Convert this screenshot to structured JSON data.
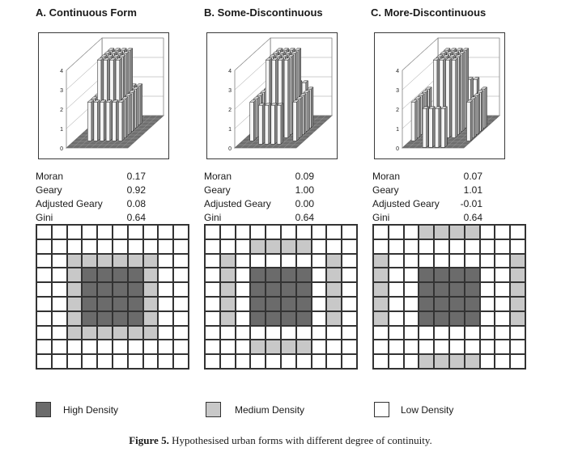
{
  "colors": {
    "high": "#6b6b6b",
    "medium": "#c8c8c8",
    "low": "#ffffff"
  },
  "panels": [
    {
      "title": "A. Continuous Form",
      "stats": [
        {
          "name": "Moran",
          "value": "0.17"
        },
        {
          "name": "Geary",
          "value": "0.92"
        },
        {
          "name": "Adjusted Geary",
          "value": "0.08"
        },
        {
          "name": "Gini",
          "value": "0.64"
        }
      ],
      "grid": [
        "LLLLLLLLLL",
        "LLLLLLLLLL",
        "LLMMMMMMLL",
        "LLMHHHHMLL",
        "LLMHHHHMLL",
        "LLMHHHHMLL",
        "LLMHHHHMLL",
        "LLMMMMMMLL",
        "LLLLLLLLLL",
        "LLLLLLLLLL"
      ]
    },
    {
      "title": "B. Some-Discontinuous",
      "stats": [
        {
          "name": "Moran",
          "value": "0.09"
        },
        {
          "name": "Geary",
          "value": "1.00"
        },
        {
          "name": "Adjusted Geary",
          "value": "0.00"
        },
        {
          "name": "Gini",
          "value": "0.64"
        }
      ],
      "grid": [
        "LLLLLLLLLL",
        "LLLMMMMLLL",
        "LMLLLLLLML",
        "LMLHHHHLML",
        "LMLHHHHLML",
        "LMLHHHHLML",
        "LMLHHHHLML",
        "LLLLLLLLLL",
        "LLLMMMMLLL",
        "LLLLLLLLLL"
      ]
    },
    {
      "title": "C. More-Discontinuous",
      "stats": [
        {
          "name": "Moran",
          "value": "0.07"
        },
        {
          "name": "Geary",
          "value": "1.01"
        },
        {
          "name": "Adjusted Geary",
          "value": "-0.01"
        },
        {
          "name": "Gini",
          "value": "0.64"
        }
      ],
      "grid": [
        "LLLMMMMLLL",
        "LLLLLLLLLL",
        "MLLLLLLLLM",
        "MLLHHHHLLM",
        "MLLHHHHLLM",
        "MLLHHHHLLM",
        "MLLHHHHLLM",
        "LLLLLLLLLL",
        "LLLLLLLLLL",
        "LLLMMMMLLL"
      ]
    }
  ],
  "chart_data": [
    {
      "type": "bar3d",
      "yticks": [
        "0",
        "1",
        "2",
        "3",
        "4"
      ],
      "levels": {
        "H": 4,
        "M": 2,
        "L": 0
      },
      "grid_ref": "panels.0.grid"
    },
    {
      "type": "bar3d",
      "yticks": [
        "0",
        "1",
        "2",
        "3",
        "4"
      ],
      "levels": {
        "H": 4,
        "M": 2,
        "L": 0
      },
      "grid_ref": "panels.1.grid"
    },
    {
      "type": "bar3d",
      "yticks": [
        "0",
        "1",
        "2",
        "3",
        "4"
      ],
      "levels": {
        "H": 4,
        "M": 2,
        "L": 0
      },
      "grid_ref": "panels.2.grid"
    }
  ],
  "legend": [
    {
      "key": "high",
      "label": "High Density"
    },
    {
      "key": "medium",
      "label": "Medium Density"
    },
    {
      "key": "low",
      "label": "Low Density"
    }
  ],
  "caption": {
    "label": "Figure 5.",
    "text": "Hypothesised urban forms with different degree of continuity."
  }
}
